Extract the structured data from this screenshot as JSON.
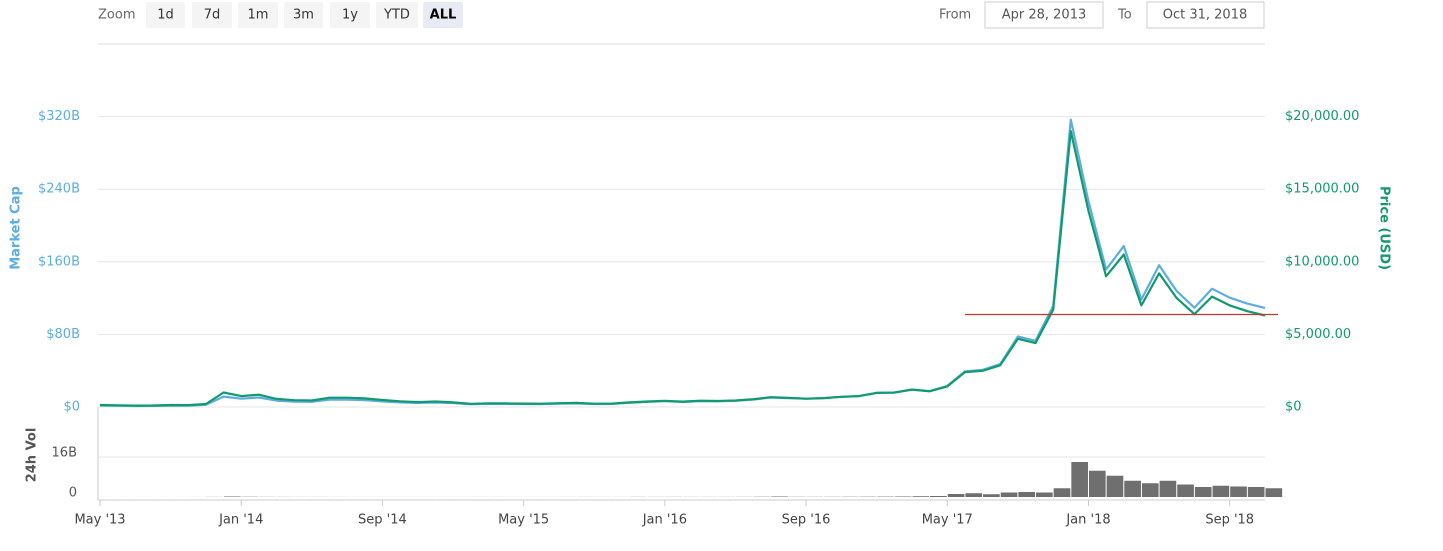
{
  "toolbar": {
    "zoom_label": "Zoom",
    "buttons": [
      "1d",
      "7d",
      "1m",
      "3m",
      "1y",
      "YTD",
      "ALL"
    ],
    "selected_index": 6,
    "from_label": "From",
    "from": "Apr 28, 2013",
    "to_label": "To",
    "to": "Oct 31, 2018"
  },
  "chart_data": [
    {
      "type": "line",
      "y_label": "Market Cap",
      "y2_label": "Price (USD)",
      "x": [
        "2013-05",
        "2013-06",
        "2013-07",
        "2013-08",
        "2013-09",
        "2013-10",
        "2013-11",
        "2013-12",
        "2014-01",
        "2014-02",
        "2014-03",
        "2014-04",
        "2014-05",
        "2014-06",
        "2014-07",
        "2014-08",
        "2014-09",
        "2014-10",
        "2014-11",
        "2014-12",
        "2015-01",
        "2015-02",
        "2015-03",
        "2015-04",
        "2015-05",
        "2015-06",
        "2015-07",
        "2015-08",
        "2015-09",
        "2015-10",
        "2015-11",
        "2015-12",
        "2016-01",
        "2016-02",
        "2016-03",
        "2016-04",
        "2016-05",
        "2016-06",
        "2016-07",
        "2016-08",
        "2016-09",
        "2016-10",
        "2016-11",
        "2016-12",
        "2017-01",
        "2017-02",
        "2017-03",
        "2017-04",
        "2017-05",
        "2017-06",
        "2017-07",
        "2017-08",
        "2017-09",
        "2017-10",
        "2017-11",
        "2017-12",
        "2018-01",
        "2018-02",
        "2018-03",
        "2018-04",
        "2018-05",
        "2018-06",
        "2018-07",
        "2018-08",
        "2018-09",
        "2018-10",
        "2018-11"
      ],
      "series": [
        {
          "axis": "y",
          "color": "#5dade2",
          "values": [
            1.6,
            1.3,
            1.1,
            1.2,
            1.5,
            1.5,
            2.4,
            11.5,
            9.2,
            10.5,
            7.0,
            5.9,
            5.7,
            8.1,
            8.2,
            7.6,
            6.2,
            5.1,
            4.5,
            5.0,
            4.4,
            3.0,
            3.5,
            3.4,
            3.3,
            3.2,
            3.7,
            4.0,
            3.3,
            3.4,
            4.6,
            5.6,
            6.4,
            5.5,
            6.5,
            6.3,
            6.8,
            8.2,
            10.5,
            9.8,
            9.1,
            9.7,
            11.2,
            12.0,
            15.6,
            16.0,
            19.3,
            17.5,
            23.2,
            39.3,
            40.9,
            47.3,
            77.7,
            72.9,
            111.3,
            316.6,
            226.7,
            151.5,
            177.3,
            118.5,
            156.3,
            127.7,
            109.4,
            130.4,
            120.4,
            113.9,
            109.2
          ]
        },
        {
          "axis": "y2",
          "color": "#119a6e",
          "values": [
            140,
            120,
            95,
            105,
            135,
            130,
            210,
            1000,
            750,
            850,
            560,
            470,
            450,
            640,
            640,
            590,
            480,
            390,
            340,
            380,
            320,
            220,
            255,
            245,
            235,
            225,
            260,
            280,
            230,
            235,
            315,
            380,
            430,
            370,
            435,
            415,
            450,
            535,
            675,
            625,
            575,
            610,
            700,
            750,
            970,
            990,
            1190,
            1080,
            1420,
            2400,
            2490,
            2870,
            4700,
            4400,
            6700,
            19000,
            13500,
            9000,
            10500,
            7000,
            9200,
            7500,
            6400,
            7600,
            7000,
            6600,
            6300
          ]
        }
      ],
      "xlim": [
        "2013-05",
        "2018-11"
      ],
      "ylim": [
        0,
        400
      ],
      "yticks": [
        {
          "value": 0,
          "label": "$0"
        },
        {
          "value": 80,
          "label": "$80B"
        },
        {
          "value": 160,
          "label": "$160B"
        },
        {
          "value": 240,
          "label": "$240B"
        },
        {
          "value": 320,
          "label": "$320B"
        }
      ],
      "y2lim": [
        0,
        25000
      ],
      "y2ticks": [
        {
          "value": 0,
          "label": "$0"
        },
        {
          "value": 5000,
          "label": "$5,000.00"
        },
        {
          "value": 10000,
          "label": "$10,000.00"
        },
        {
          "value": 15000,
          "label": "$15,000.00"
        },
        {
          "value": 20000,
          "label": "$20,000.00"
        }
      ],
      "grid": true,
      "reference_line": {
        "axis": "y2",
        "value": 6370,
        "x_from": "2017-06",
        "color": "#c0392b"
      }
    },
    {
      "type": "bar",
      "y_label": "24h Vol",
      "color": "#6f6f6f",
      "x": [
        "2013-05",
        "2013-06",
        "2013-07",
        "2013-08",
        "2013-09",
        "2013-10",
        "2013-11",
        "2013-12",
        "2014-01",
        "2014-02",
        "2014-03",
        "2014-04",
        "2014-05",
        "2014-06",
        "2014-07",
        "2014-08",
        "2014-09",
        "2014-10",
        "2014-11",
        "2014-12",
        "2015-01",
        "2015-02",
        "2015-03",
        "2015-04",
        "2015-05",
        "2015-06",
        "2015-07",
        "2015-08",
        "2015-09",
        "2015-10",
        "2015-11",
        "2015-12",
        "2016-01",
        "2016-02",
        "2016-03",
        "2016-04",
        "2016-05",
        "2016-06",
        "2016-07",
        "2016-08",
        "2016-09",
        "2016-10",
        "2016-11",
        "2016-12",
        "2017-01",
        "2017-02",
        "2017-03",
        "2017-04",
        "2017-05",
        "2017-06",
        "2017-07",
        "2017-08",
        "2017-09",
        "2017-10",
        "2017-11",
        "2017-12",
        "2018-01",
        "2018-02",
        "2018-03",
        "2018-04",
        "2018-05",
        "2018-06",
        "2018-07",
        "2018-08",
        "2018-09",
        "2018-10",
        "2018-11"
      ],
      "values": [
        0.01,
        0.01,
        0.01,
        0.01,
        0.01,
        0.02,
        0.05,
        0.2,
        0.1,
        0.06,
        0.05,
        0.04,
        0.04,
        0.03,
        0.02,
        0.02,
        0.02,
        0.02,
        0.02,
        0.02,
        0.02,
        0.03,
        0.03,
        0.02,
        0.02,
        0.02,
        0.03,
        0.04,
        0.03,
        0.03,
        0.06,
        0.05,
        0.06,
        0.05,
        0.05,
        0.05,
        0.06,
        0.1,
        0.2,
        0.08,
        0.07,
        0.08,
        0.1,
        0.12,
        0.15,
        0.2,
        0.3,
        0.4,
        1.2,
        1.5,
        1.1,
        1.8,
        2.0,
        1.8,
        3.5,
        14,
        10.5,
        8.5,
        6.5,
        5.5,
        6.5,
        5.0,
        4.0,
        4.5,
        4.2,
        4.0,
        3.5
      ],
      "xlim": [
        "2013-05",
        "2018-11"
      ],
      "ylim": [
        0,
        36
      ],
      "yticks": [
        0,
        {
          "value": 16,
          "label": "16B"
        }
      ],
      "xticks": [
        {
          "value": "2013-05",
          "label": "May '13"
        },
        {
          "value": "2014-01",
          "label": "Jan '14"
        },
        {
          "value": "2014-09",
          "label": "Sep '14"
        },
        {
          "value": "2015-05",
          "label": "May '15"
        },
        {
          "value": "2016-01",
          "label": "Jan '16"
        },
        {
          "value": "2016-09",
          "label": "Sep '16"
        },
        {
          "value": "2017-05",
          "label": "May '17"
        },
        {
          "value": "2018-01",
          "label": "Jan '18"
        },
        {
          "value": "2018-09",
          "label": "Sep '18"
        }
      ],
      "grid": true
    }
  ]
}
